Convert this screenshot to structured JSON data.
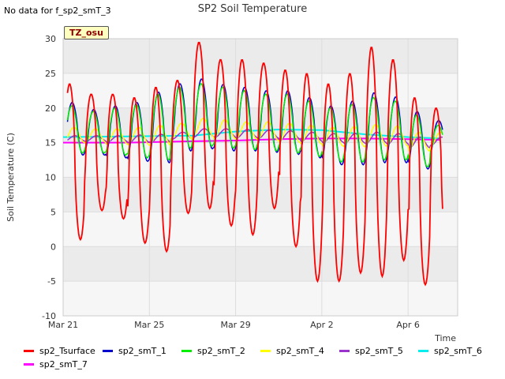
{
  "header": {
    "nodata_text": "No data for f_sp2_smT_3",
    "title": "SP2 Soil Temperature",
    "tz_label": "TZ_osu"
  },
  "chart_data": {
    "type": "line",
    "title": "SP2 Soil Temperature",
    "xlabel": "Time",
    "ylabel": "Soil Temperature (C)",
    "ylim": [
      -10,
      30
    ],
    "xlim_days": [
      0,
      18.3
    ],
    "x_start_date": "Mar 21",
    "y_ticks": [
      -10,
      -5,
      0,
      5,
      10,
      15,
      20,
      25,
      30
    ],
    "x_ticks": [
      {
        "label": "Mar 21",
        "day": 0
      },
      {
        "label": "Mar 25",
        "day": 4
      },
      {
        "label": "Mar 29",
        "day": 8
      },
      {
        "label": "Apr 2",
        "day": 12
      },
      {
        "label": "Apr 6",
        "day": 16
      }
    ],
    "grid": true,
    "legend_position": "bottom",
    "daily_series": {
      "sp2_Tsurface": {
        "days": [
          0.3,
          1.3,
          2.3,
          3.3,
          4.3,
          5.3,
          6.3,
          7.3,
          8.3,
          9.3,
          10.3,
          11.3,
          12.3,
          13.3,
          14.3,
          15.3,
          16.3,
          17.3
        ],
        "max": [
          23.5,
          22,
          22,
          21.5,
          23,
          24,
          29.5,
          27,
          27,
          26.5,
          25.5,
          25,
          23.5,
          25,
          28.8,
          27,
          21.5,
          20
        ],
        "min": [
          1,
          5.2,
          4,
          0.5,
          -0.7,
          4.8,
          5.5,
          3,
          1.7,
          5.5,
          0,
          -5,
          -5,
          -3.8,
          -4.3,
          -2,
          -5.5,
          0.5
        ]
      },
      "sp2_smT_1": {
        "max": [
          20.8,
          19.8,
          20.3,
          20.8,
          22.3,
          23.5,
          24.2,
          23.4,
          23,
          22.5,
          22.5,
          21.5,
          20.3,
          21,
          22.2,
          21.6,
          19.5,
          18.2
        ],
        "min": [
          13.2,
          13.2,
          12.8,
          12.3,
          12.1,
          13.8,
          14.1,
          13.8,
          13.8,
          13.6,
          13.3,
          12.8,
          11.8,
          11.8,
          12.1,
          12.1,
          11.2,
          12.8
        ]
      },
      "sp2_smT_2": {
        "max": [
          20.3,
          19.5,
          20,
          20.5,
          22,
          23,
          23.5,
          23,
          22.5,
          22,
          22,
          21,
          20,
          20.5,
          21.5,
          21,
          19,
          17.5
        ],
        "min": [
          13.5,
          13.5,
          13.2,
          12.8,
          12.5,
          14.2,
          14.5,
          14.2,
          14,
          13.8,
          13.5,
          13,
          12.2,
          12.2,
          12.5,
          12.5,
          11.5,
          13
        ]
      },
      "sp2_smT_4": {
        "max": [
          17.2,
          17,
          17,
          17.2,
          17.5,
          17.8,
          18.5,
          18.3,
          18,
          18,
          17.8,
          17.5,
          17.2,
          17.3,
          17.6,
          17.4,
          16.5,
          16.5
        ],
        "min": [
          15,
          15,
          14.8,
          14.7,
          14.6,
          15.5,
          15.8,
          15.6,
          15.5,
          15.3,
          15,
          14.8,
          14.5,
          14.4,
          14.5,
          14.5,
          13.8,
          14.3
        ]
      },
      "sp2_smT_5": {
        "max": [
          16,
          16,
          16,
          16.1,
          16.2,
          16.5,
          17,
          17,
          16.9,
          16.8,
          16.7,
          16.5,
          16.3,
          16.3,
          16.5,
          16.3,
          15.8,
          15.8
        ],
        "min": [
          15.2,
          15.2,
          15.1,
          15,
          15,
          15.5,
          15.8,
          15.8,
          15.7,
          15.6,
          15.4,
          15.2,
          15,
          14.9,
          14.9,
          14.8,
          14.2,
          14.6
        ]
      },
      "sp2_smT_6": {
        "days": [
          0,
          3,
          6,
          8,
          10,
          12,
          14,
          16,
          17.5
        ],
        "values": [
          15.8,
          15.9,
          16,
          16.6,
          16.9,
          16.8,
          16.2,
          15.8,
          15.6
        ]
      },
      "sp2_smT_7": {
        "days": [
          0,
          3,
          6,
          8,
          10,
          12,
          14,
          16,
          17.5
        ],
        "values": [
          15,
          15,
          15.2,
          15.3,
          15.5,
          15.6,
          15.6,
          15.5,
          15.4
        ]
      }
    },
    "series": [
      {
        "name": "sp2_Tsurface",
        "color": "#ff0000"
      },
      {
        "name": "sp2_smT_1",
        "color": "#0000cc"
      },
      {
        "name": "sp2_smT_2",
        "color": "#00ee00"
      },
      {
        "name": "sp2_smT_4",
        "color": "#ffff00"
      },
      {
        "name": "sp2_smT_5",
        "color": "#9933cc"
      },
      {
        "name": "sp2_smT_6",
        "color": "#00eeee"
      },
      {
        "name": "sp2_smT_7",
        "color": "#ff00ff"
      }
    ]
  }
}
